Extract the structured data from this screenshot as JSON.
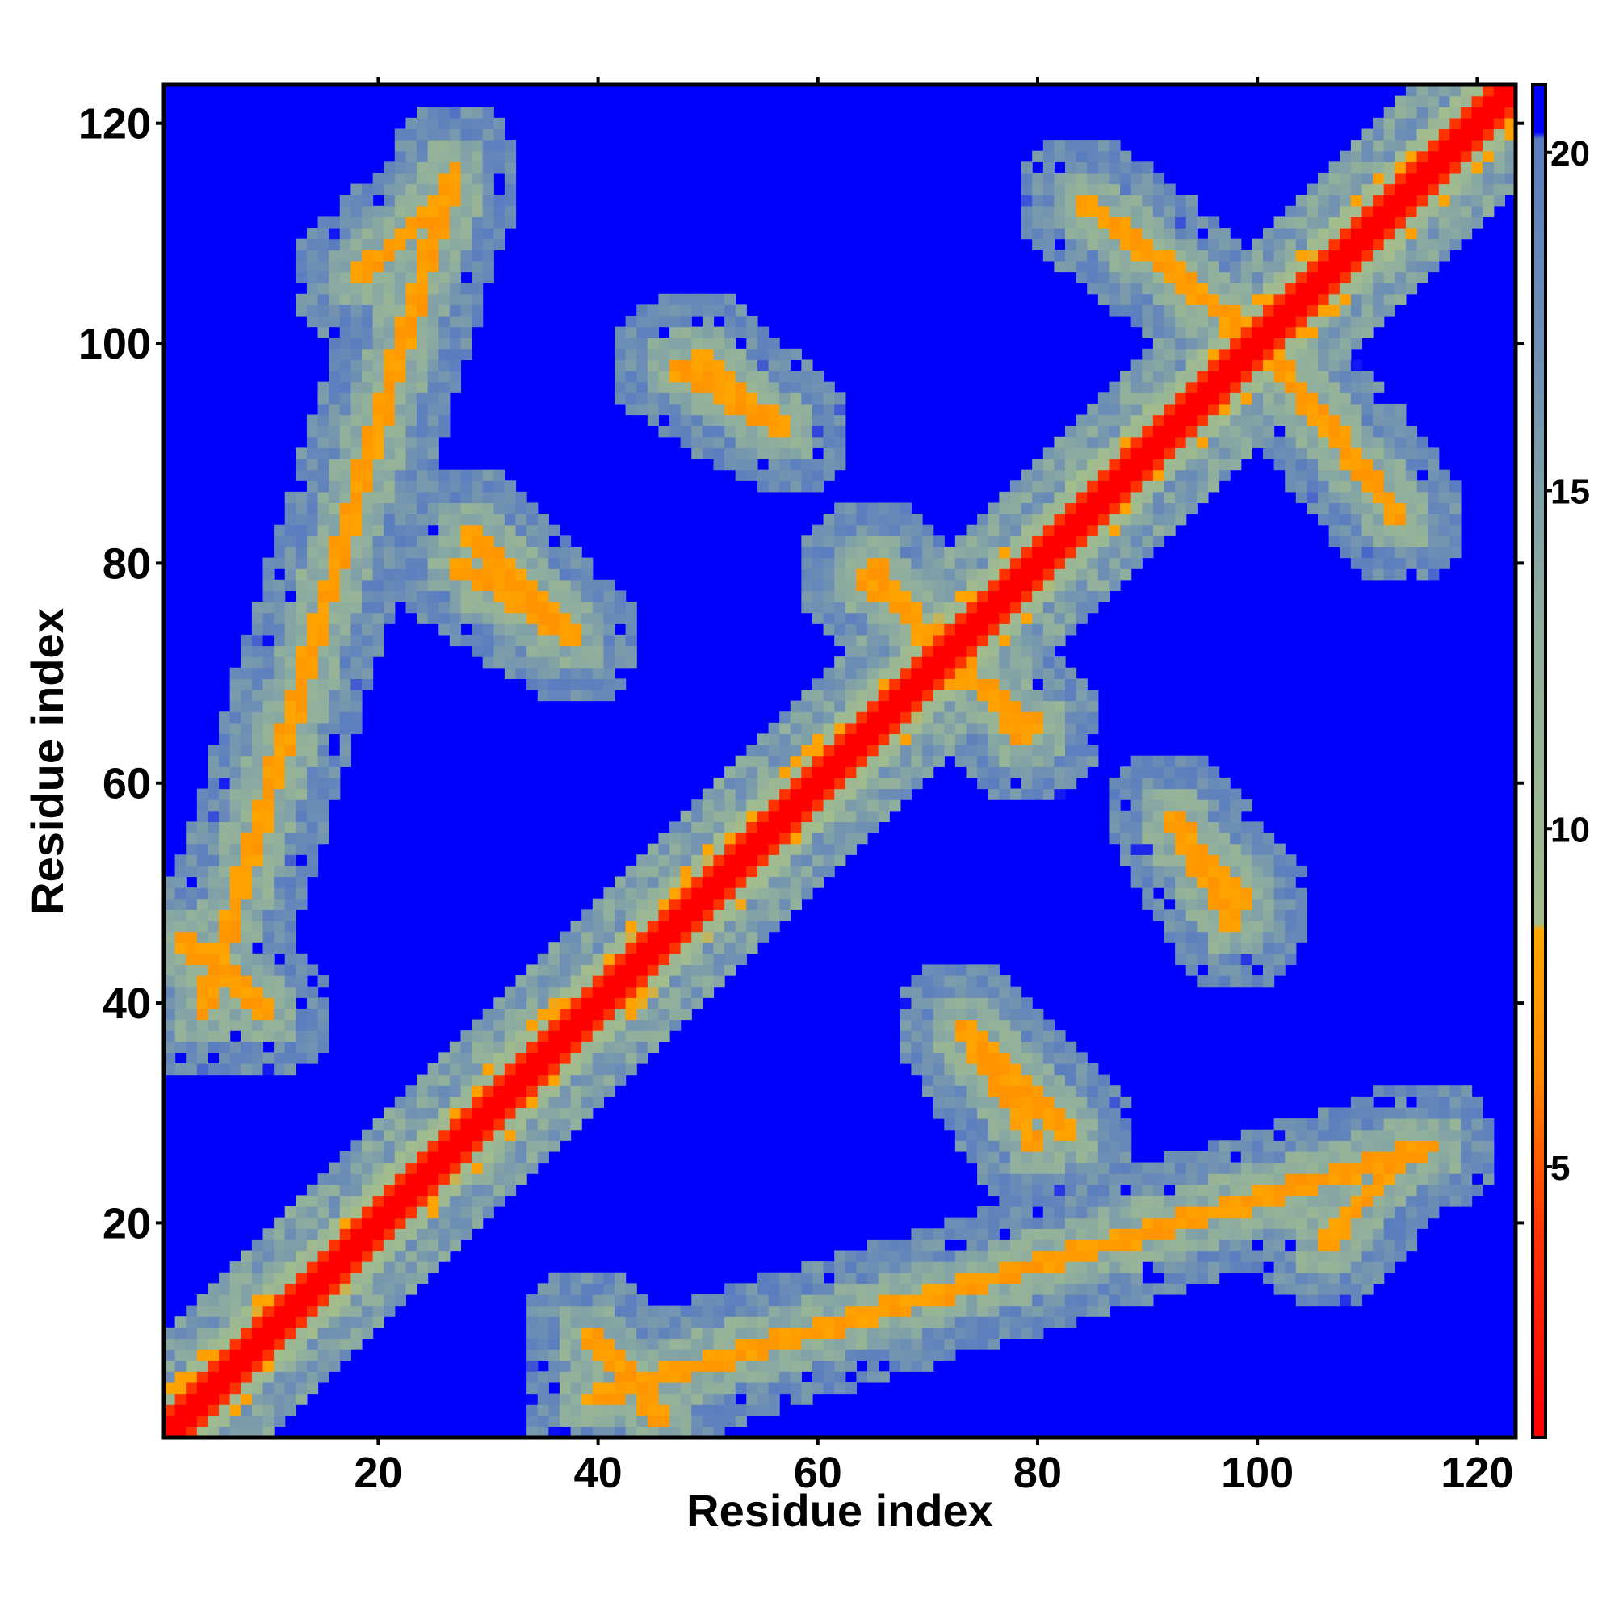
{
  "chart_data": {
    "type": "heatmap",
    "subtype": "residue distance map",
    "title": "",
    "xlabel": "Residue index",
    "ylabel": "Residue index",
    "n_residues": 123,
    "xlim": [
      1,
      123
    ],
    "ylim": [
      1,
      123
    ],
    "x_ticks": [
      20,
      40,
      60,
      80,
      100,
      120
    ],
    "y_ticks": [
      20,
      40,
      60,
      80,
      100,
      120
    ],
    "colorbar": {
      "range": [
        1,
        21
      ],
      "ticks": [
        5,
        10,
        15,
        20
      ],
      "color_stops": [
        {
          "value": 1,
          "color": "#ff0000"
        },
        {
          "value": 4,
          "color": "#ff3300"
        },
        {
          "value": 6.5,
          "color": "#ff8c00"
        },
        {
          "value": 8.5,
          "color": "#ffa500"
        },
        {
          "value": 8.6,
          "color": "#a3bd8c"
        },
        {
          "value": 13,
          "color": "#8fae9e"
        },
        {
          "value": 17,
          "color": "#6e8fb4"
        },
        {
          "value": 20.2,
          "color": "#5a7dc0"
        },
        {
          "value": 20.3,
          "color": "#0000ff"
        },
        {
          "value": 21,
          "color": "#0000ff"
        }
      ]
    },
    "diagonal_value": 1,
    "background_value": 21,
    "contact_bands": [
      {
        "name": "anti-diagonal 4-27 / 39-16",
        "from": [
          4,
          39
        ],
        "to": [
          27,
          116
        ],
        "value": 7,
        "halo": 11
      },
      {
        "name": "anti-diagonal 28-38",
        "from": [
          28,
          83
        ],
        "to": [
          38,
          73
        ],
        "value": 7,
        "halo": 11
      },
      {
        "name": "anti-diagonal 49-57",
        "from": [
          49,
          99
        ],
        "to": [
          57,
          92
        ],
        "value": 7,
        "halo": 11
      },
      {
        "name": "anti-diagonal 84-99",
        "from": [
          84,
          113
        ],
        "to": [
          99,
          101
        ],
        "value": 7,
        "halo": 11
      },
      {
        "name": "anti-diagonal 102-111",
        "from": [
          102,
          98
        ],
        "to": [
          111,
          87
        ],
        "value": 7,
        "halo": 11
      },
      {
        "name": "anti-diagonal 72-79",
        "from": [
          72,
          72
        ],
        "to": [
          79,
          64
        ],
        "value": 7,
        "halo": 11
      },
      {
        "name": "anti-diagonal 65-71",
        "from": [
          65,
          80
        ],
        "to": [
          71,
          72
        ],
        "value": 7,
        "halo": 11
      },
      {
        "name": "lower band 92-98",
        "from": [
          92,
          57
        ],
        "to": [
          98,
          47
        ],
        "value": 7,
        "halo": 11
      },
      {
        "name": "lower band 73-80",
        "from": [
          73,
          38
        ],
        "to": [
          80,
          27
        ],
        "value": 7,
        "halo": 11
      },
      {
        "name": "lower band 106-114",
        "from": [
          106,
          18
        ],
        "to": [
          114,
          27
        ],
        "value": 7,
        "halo": 11
      },
      {
        "name": "lower band 39-45",
        "from": [
          39,
          10
        ],
        "to": [
          45,
          4
        ],
        "value": 7,
        "halo": 11
      },
      {
        "name": "lower band 2-10",
        "from": [
          2,
          46
        ],
        "to": [
          10,
          39
        ],
        "value": 7,
        "halo": 11
      }
    ],
    "grid": false,
    "legend": "colorbar-right"
  }
}
